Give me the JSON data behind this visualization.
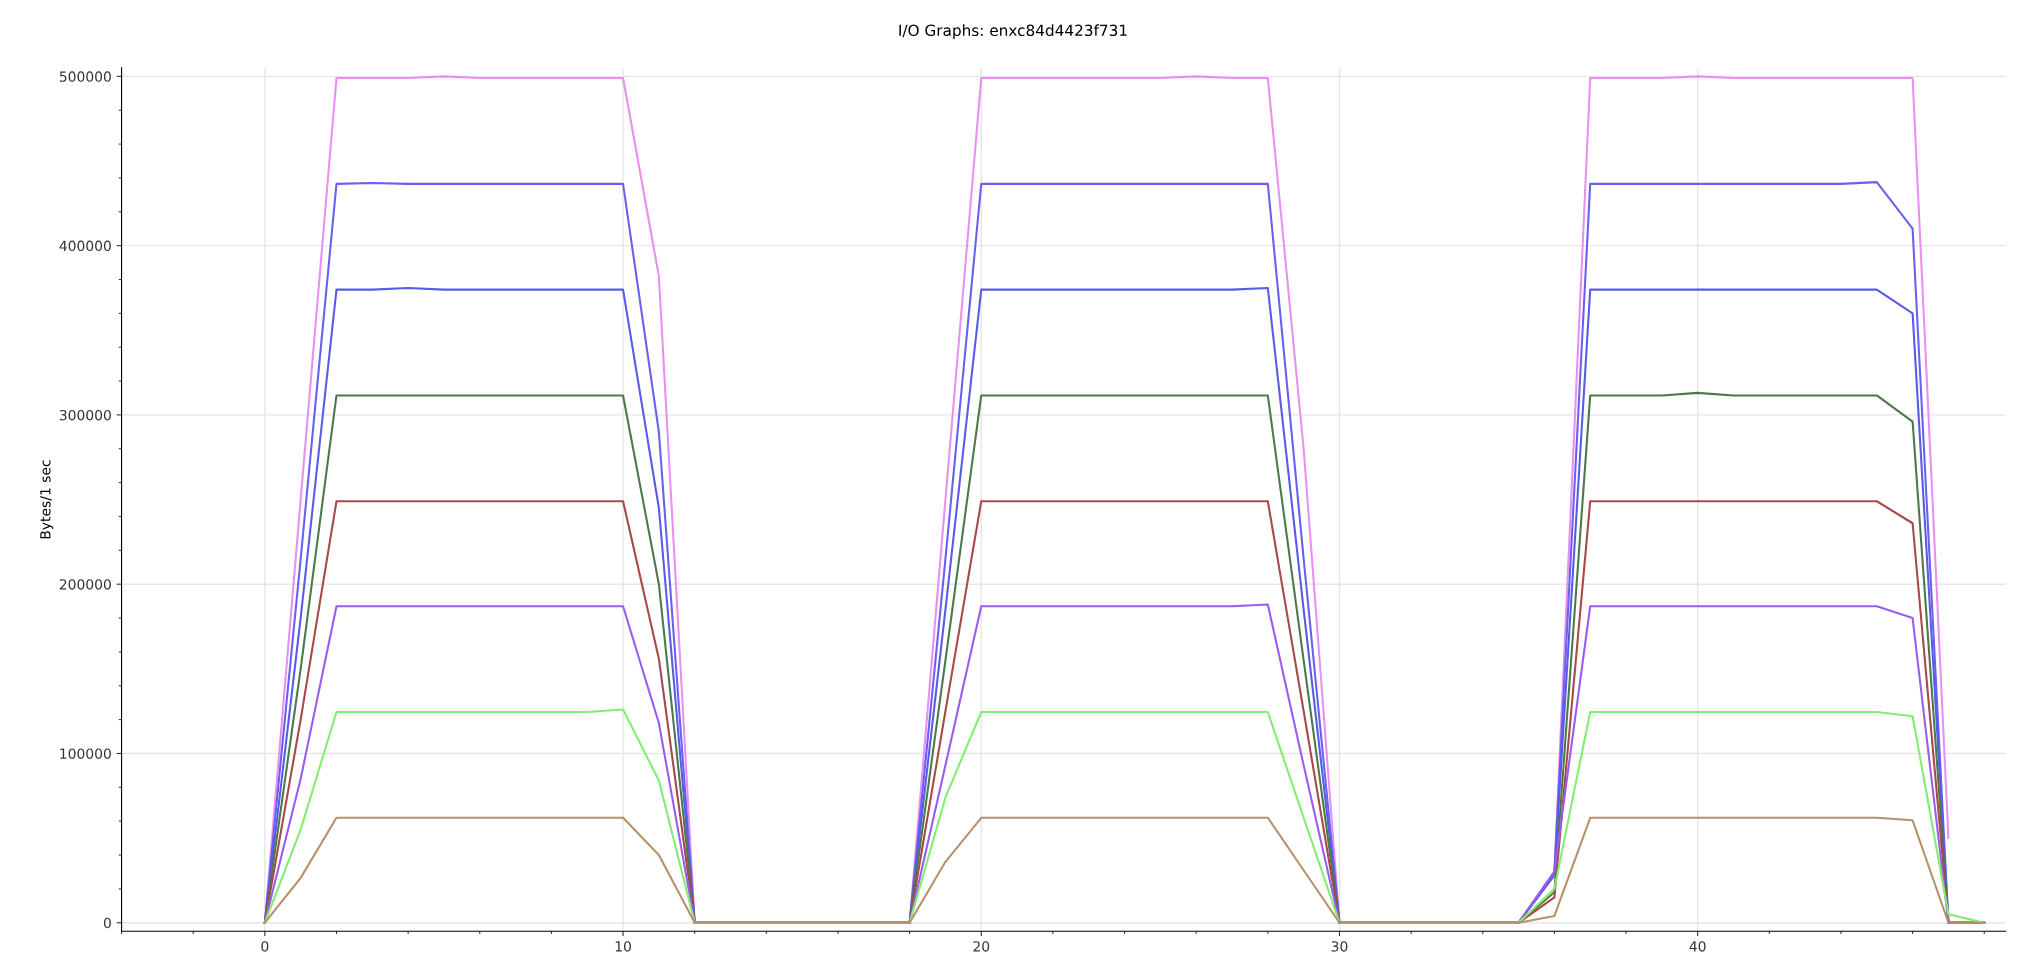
{
  "chart_data": {
    "type": "line",
    "title": "I/O Graphs: enxc84d4423f731",
    "ylabel": "Bytes/1 sec",
    "x": [
      0,
      1,
      2,
      3,
      4,
      5,
      6,
      7,
      8,
      9,
      10,
      11,
      12,
      13,
      14,
      15,
      16,
      17,
      18,
      19,
      20,
      21,
      22,
      23,
      24,
      25,
      26,
      27,
      28,
      29,
      30,
      31,
      32,
      33,
      34,
      35,
      36,
      37,
      38,
      39,
      40,
      41,
      42,
      43,
      44,
      45,
      46,
      47,
      48
    ],
    "series": [
      {
        "color": "#e890f0",
        "values": [
          0,
          250000,
          499000,
          499000,
          499000,
          500000,
          499000,
          499000,
          499000,
          499000,
          499000,
          382000,
          0,
          0,
          0,
          0,
          0,
          0,
          0,
          250000,
          499000,
          499000,
          499000,
          499000,
          499000,
          499000,
          500000,
          499000,
          499000,
          280000,
          0,
          0,
          0,
          0,
          0,
          0,
          30000,
          499000,
          499000,
          499000,
          500000,
          499000,
          499000,
          499000,
          499000,
          499000,
          499000,
          50000,
          null
        ]
      },
      {
        "color": "#6a60f0",
        "values": [
          0,
          215000,
          436500,
          437000,
          436500,
          436500,
          436500,
          436500,
          436500,
          436500,
          436500,
          290000,
          0,
          0,
          0,
          0,
          0,
          0,
          0,
          215000,
          436500,
          436500,
          436500,
          436500,
          436500,
          436500,
          436500,
          436500,
          436500,
          215000,
          0,
          0,
          0,
          0,
          0,
          0,
          30000,
          436500,
          436500,
          436500,
          436500,
          436500,
          436500,
          436500,
          436500,
          437500,
          410000,
          0,
          0
        ]
      },
      {
        "color": "#5a5ae8",
        "values": [
          0,
          180000,
          374000,
          374000,
          375000,
          374000,
          374000,
          374000,
          374000,
          374000,
          374000,
          245000,
          0,
          0,
          0,
          0,
          0,
          0,
          0,
          185000,
          374000,
          374000,
          374000,
          374000,
          374000,
          374000,
          374000,
          374000,
          375000,
          185000,
          0,
          0,
          0,
          0,
          0,
          0,
          28000,
          374000,
          374000,
          374000,
          374000,
          374000,
          374000,
          374000,
          374000,
          374000,
          360000,
          0,
          0
        ]
      },
      {
        "color": "#4a7a4a",
        "values": [
          0,
          150000,
          311500,
          311500,
          311500,
          311500,
          311500,
          311500,
          311500,
          311500,
          311500,
          200000,
          0,
          0,
          0,
          0,
          0,
          0,
          0,
          155000,
          311500,
          311500,
          311500,
          311500,
          311500,
          311500,
          311500,
          311500,
          311500,
          155000,
          0,
          0,
          0,
          0,
          0,
          0,
          18000,
          311500,
          311500,
          311500,
          313000,
          311500,
          311500,
          311500,
          311500,
          311500,
          296000,
          0,
          0
        ]
      },
      {
        "color": "#a84848",
        "values": [
          0,
          120000,
          249000,
          249000,
          249000,
          249000,
          249000,
          249000,
          249000,
          249000,
          249000,
          156000,
          0,
          0,
          0,
          0,
          0,
          0,
          0,
          125000,
          249000,
          249000,
          249000,
          249000,
          249000,
          249000,
          249000,
          249000,
          249000,
          125000,
          0,
          0,
          0,
          0,
          0,
          0,
          15000,
          249000,
          249000,
          249000,
          249000,
          249000,
          249000,
          249000,
          249000,
          249000,
          236000,
          0,
          0
        ]
      },
      {
        "color": "#9a5cf0",
        "values": [
          0,
          85000,
          187000,
          187000,
          187000,
          187000,
          187000,
          187000,
          187000,
          187000,
          187000,
          118000,
          0,
          0,
          0,
          0,
          0,
          0,
          0,
          93000,
          187000,
          187000,
          187000,
          187000,
          187000,
          187000,
          187000,
          187000,
          188000,
          93000,
          0,
          0,
          0,
          0,
          0,
          0,
          30000,
          187000,
          187000,
          187000,
          187000,
          187000,
          187000,
          187000,
          187000,
          187000,
          180000,
          0,
          0
        ]
      },
      {
        "color": "#80ee70",
        "values": [
          0,
          55000,
          124500,
          124500,
          124500,
          124500,
          124500,
          124500,
          124500,
          124500,
          126000,
          84000,
          0,
          0,
          0,
          0,
          0,
          0,
          0,
          74000,
          124500,
          124500,
          124500,
          124500,
          124500,
          124500,
          124500,
          124500,
          124500,
          62000,
          0,
          0,
          0,
          0,
          0,
          0,
          20000,
          124500,
          124500,
          124500,
          124500,
          124500,
          124500,
          124500,
          124500,
          124500,
          122000,
          5000,
          0
        ]
      },
      {
        "color": "#b8906a",
        "values": [
          0,
          26500,
          62000,
          62000,
          62000,
          62000,
          62000,
          62000,
          62000,
          62000,
          62000,
          40000,
          0,
          0,
          0,
          0,
          0,
          0,
          0,
          36000,
          62000,
          62000,
          62000,
          62000,
          62000,
          62000,
          62000,
          62000,
          62000,
          31000,
          0,
          0,
          0,
          0,
          0,
          0,
          4000,
          62000,
          62000,
          62000,
          62000,
          62000,
          62000,
          62000,
          62000,
          62000,
          60500,
          0,
          0
        ]
      }
    ],
    "xlim": [
      -4,
      48.6
    ],
    "ylim": [
      -5000,
      505000
    ],
    "xticks": [
      0,
      10,
      20,
      30,
      40
    ],
    "yticks": [
      0,
      100000,
      200000,
      300000,
      400000,
      500000
    ],
    "grid": true,
    "marker": "none",
    "line_style": "solid"
  }
}
